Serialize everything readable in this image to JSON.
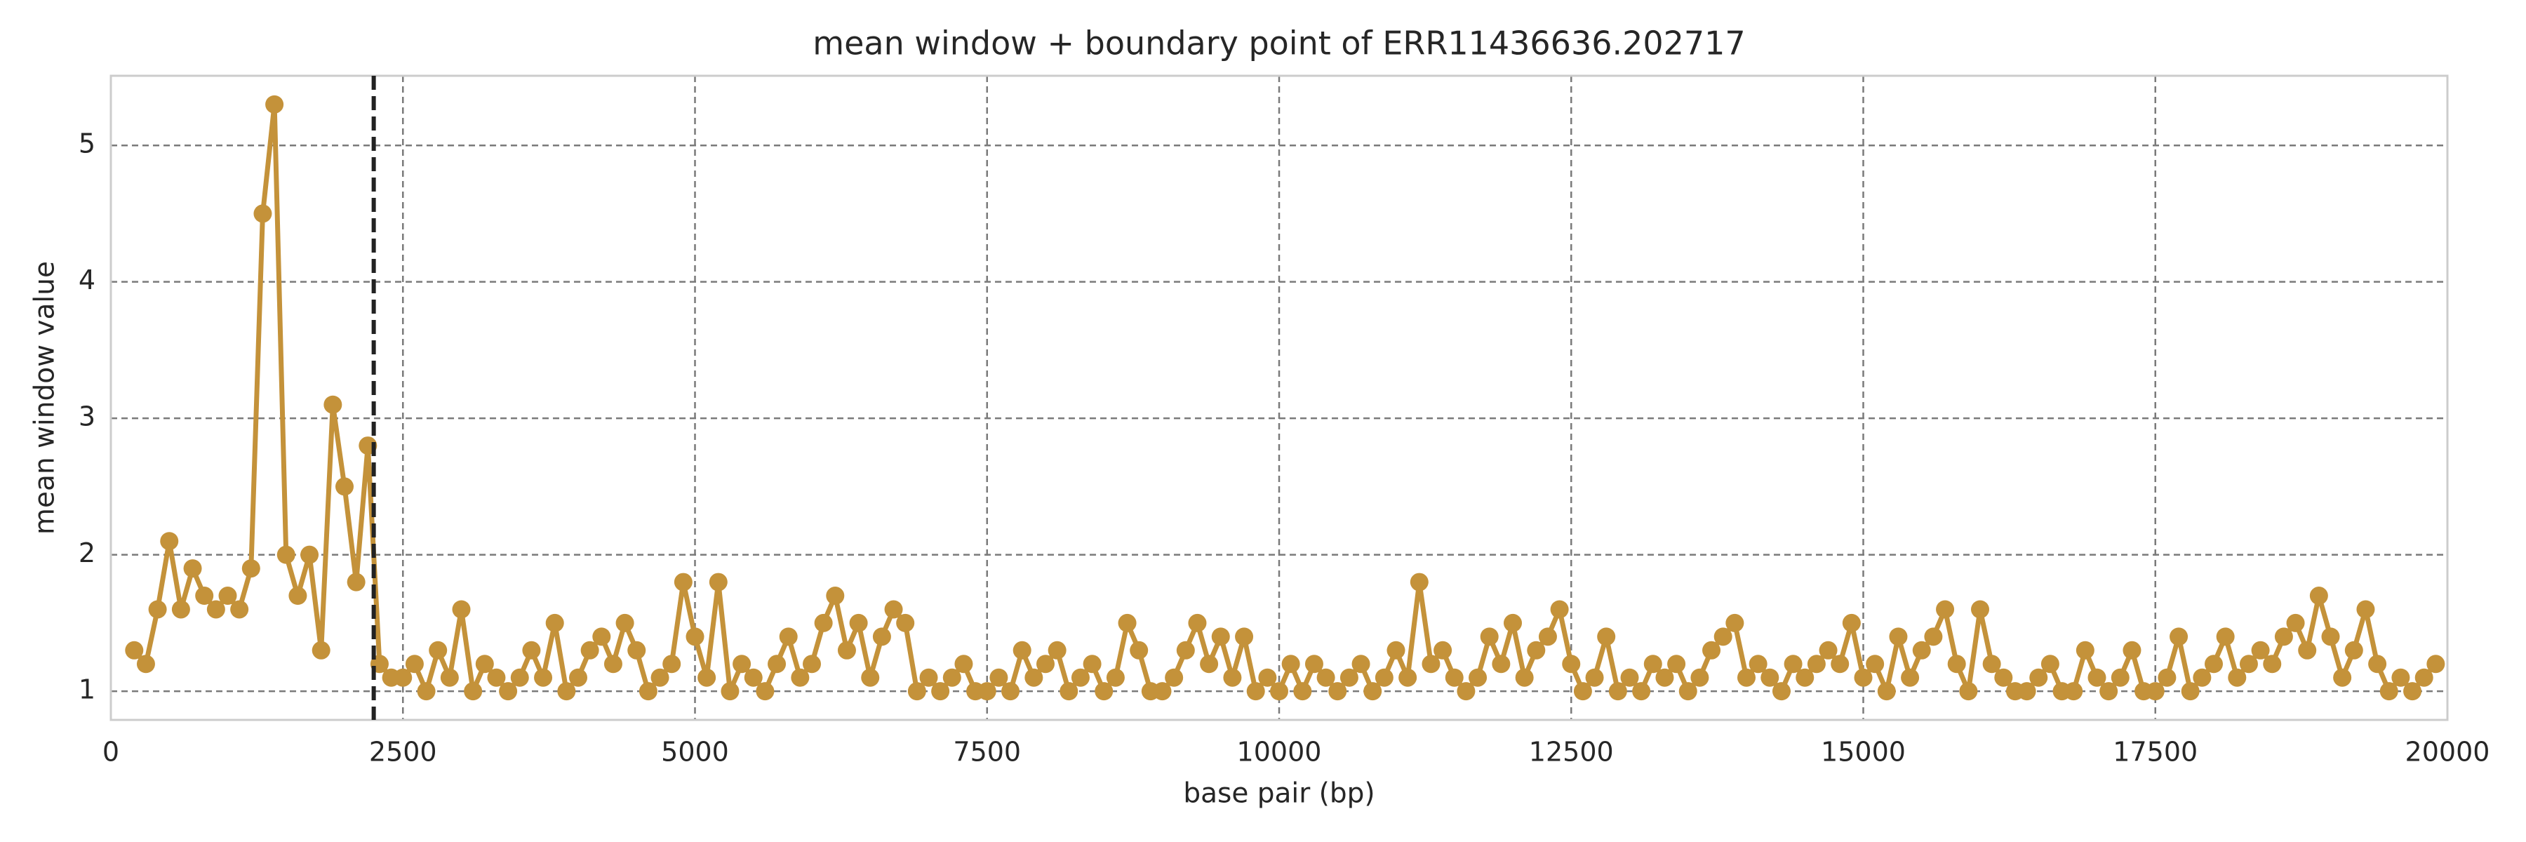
{
  "chart_data": {
    "type": "line",
    "title": "mean window + boundary point of ERR11436636.202717",
    "xlabel": "base pair (bp)",
    "ylabel": "mean window value",
    "x": [
      200,
      300,
      400,
      500,
      600,
      700,
      800,
      900,
      1000,
      1100,
      1200,
      1300,
      1400,
      1500,
      1600,
      1700,
      1800,
      1900,
      2000,
      2100,
      2200,
      2300,
      2400,
      2500,
      2600,
      2700,
      2800,
      2900,
      3000,
      3100,
      3200,
      3300,
      3400,
      3500,
      3600,
      3700,
      3800,
      3900,
      4000,
      4100,
      4200,
      4300,
      4400,
      4500,
      4600,
      4700,
      4800,
      4900,
      5000,
      5100,
      5200,
      5300,
      5400,
      5500,
      5600,
      5700,
      5800,
      5900,
      6000,
      6100,
      6200,
      6300,
      6400,
      6500,
      6600,
      6700,
      6800,
      6900,
      7000,
      7100,
      7200,
      7300,
      7400,
      7500,
      7600,
      7700,
      7800,
      7900,
      8000,
      8100,
      8200,
      8300,
      8400,
      8500,
      8600,
      8700,
      8800,
      8900,
      9000,
      9100,
      9200,
      9300,
      9400,
      9500,
      9600,
      9700,
      9800,
      9900,
      10000,
      10100,
      10200,
      10300,
      10400,
      10500,
      10600,
      10700,
      10800,
      10900,
      11000,
      11100,
      11200,
      11300,
      11400,
      11500,
      11600,
      11700,
      11800,
      11900,
      12000,
      12100,
      12200,
      12300,
      12400,
      12500,
      12600,
      12700,
      12800,
      12900,
      13000,
      13100,
      13200,
      13300,
      13400,
      13500,
      13600,
      13700,
      13800,
      13900,
      14000,
      14100,
      14200,
      14300,
      14400,
      14500,
      14600,
      14700,
      14800,
      14900,
      15000,
      15100,
      15200,
      15300,
      15400,
      15500,
      15600,
      15700,
      15800,
      15900,
      16000,
      16100,
      16200,
      16300,
      16400,
      16500,
      16600,
      16700,
      16800,
      16900,
      17000,
      17100,
      17200,
      17300,
      17400,
      17500,
      17600,
      17700,
      17800,
      17900,
      18000,
      18100,
      18200,
      18300,
      18400,
      18500,
      18600,
      18700,
      18800,
      18900,
      19000,
      19100,
      19200,
      19300,
      19400,
      19500,
      19600,
      19700,
      19800,
      19900
    ],
    "values": [
      1.3,
      1.2,
      1.6,
      2.1,
      1.6,
      1.9,
      1.7,
      1.6,
      1.7,
      1.6,
      1.9,
      4.5,
      5.3,
      2.0,
      1.7,
      2.0,
      1.3,
      3.1,
      2.5,
      1.8,
      2.8,
      1.2,
      1.1,
      1.1,
      1.2,
      1.0,
      1.3,
      1.1,
      1.6,
      1.0,
      1.2,
      1.1,
      1.0,
      1.1,
      1.3,
      1.1,
      1.5,
      1.0,
      1.1,
      1.3,
      1.4,
      1.2,
      1.5,
      1.3,
      1.0,
      1.1,
      1.2,
      1.8,
      1.4,
      1.1,
      1.8,
      1.0,
      1.2,
      1.1,
      1.0,
      1.2,
      1.4,
      1.1,
      1.2,
      1.5,
      1.7,
      1.3,
      1.5,
      1.1,
      1.4,
      1.6,
      1.5,
      1.0,
      1.1,
      1.0,
      1.1,
      1.2,
      1.0,
      1.0,
      1.1,
      1.0,
      1.3,
      1.1,
      1.2,
      1.3,
      1.0,
      1.1,
      1.2,
      1.0,
      1.1,
      1.5,
      1.3,
      1.0,
      1.0,
      1.1,
      1.3,
      1.5,
      1.2,
      1.4,
      1.1,
      1.4,
      1.0,
      1.1,
      1.0,
      1.2,
      1.0,
      1.2,
      1.1,
      1.0,
      1.1,
      1.2,
      1.0,
      1.1,
      1.3,
      1.1,
      1.8,
      1.2,
      1.3,
      1.1,
      1.0,
      1.1,
      1.4,
      1.2,
      1.5,
      1.1,
      1.3,
      1.4,
      1.6,
      1.2,
      1.0,
      1.1,
      1.4,
      1.0,
      1.1,
      1.0,
      1.2,
      1.1,
      1.2,
      1.0,
      1.1,
      1.3,
      1.4,
      1.5,
      1.1,
      1.2,
      1.1,
      1.0,
      1.2,
      1.1,
      1.2,
      1.3,
      1.2,
      1.5,
      1.1,
      1.2,
      1.0,
      1.4,
      1.1,
      1.3,
      1.4,
      1.6,
      1.2,
      1.0,
      1.6,
      1.2,
      1.1,
      1.0,
      1.0,
      1.1,
      1.2,
      1.0,
      1.0,
      1.3,
      1.1,
      1.0,
      1.1,
      1.3,
      1.0,
      1.0,
      1.1,
      1.4,
      1.0,
      1.1,
      1.2,
      1.4,
      1.1,
      1.2,
      1.3,
      1.2,
      1.4,
      1.5,
      1.3,
      1.7,
      1.4,
      1.1,
      1.3,
      1.6,
      1.2,
      1.0,
      1.1,
      1.0,
      1.1,
      1.2
    ],
    "color": "#c4923a",
    "boundary_x": 2250,
    "boundary_color": "#222222",
    "xlim": [
      0,
      20000
    ],
    "xticks": [
      0,
      2500,
      5000,
      7500,
      10000,
      12500,
      15000,
      17500,
      20000
    ],
    "ylim": [
      0.79,
      5.51
    ],
    "yticks": [
      1,
      2,
      3,
      4,
      5
    ],
    "grid": true
  }
}
